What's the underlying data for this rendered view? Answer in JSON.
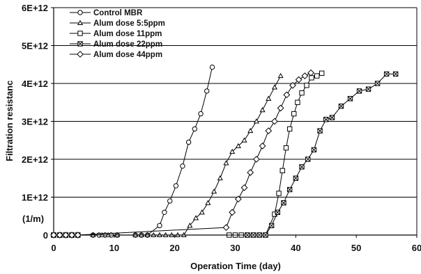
{
  "chart_data": {
    "type": "line",
    "title": "",
    "xlabel": "Operation Time (day)",
    "ylabel": "Filtration resistanc",
    "unit_label": "(1/m)",
    "xlim": [
      0,
      60
    ],
    "ylim": [
      0,
      6000000000000.0
    ],
    "x_ticks": [
      "0",
      "10",
      "20",
      "30",
      "40",
      "50",
      "60"
    ],
    "y_ticks": [
      "0",
      "1E+12",
      "2E+12",
      "3E+12",
      "4E+12",
      "5E+12",
      "6E+12"
    ],
    "grid": "horizontal",
    "legend_position": "top-left",
    "series": [
      {
        "name": "Control MBR",
        "marker": "circle",
        "x": [
          0,
          1,
          2,
          3,
          4,
          6.5,
          7.5,
          8.5,
          9.5,
          10.5,
          13.5,
          14.5,
          15.5,
          17.5,
          18.3,
          19.2,
          20.2,
          21.3,
          22.3,
          23.3,
          24.3,
          25.3,
          26.2
        ],
        "y": [
          0,
          0,
          0,
          0,
          0,
          0,
          0,
          0,
          0,
          0,
          0,
          0,
          0,
          250000000000.0,
          600000000000.0,
          900000000000.0,
          1300000000000.0,
          1820000000000.0,
          2450000000000.0,
          2800000000000.0,
          3200000000000.0,
          3800000000000.0,
          4430000000000.0
        ]
      },
      {
        "name": "Alum dose 5:5ppm",
        "marker": "triangle",
        "x": [
          0,
          1,
          2,
          3,
          4,
          6.5,
          8,
          9,
          10.5,
          13.5,
          14.5,
          15.5,
          16.5,
          17.5,
          18.5,
          19.5,
          20.5,
          21.5,
          22.5,
          23.5,
          24.5,
          25.5,
          26.5,
          27.5,
          28.5,
          29.5,
          30.5,
          31.5,
          32.5,
          33.5,
          34.5,
          35.5,
          36.5,
          37.5
        ],
        "y": [
          0,
          0,
          0,
          0,
          0,
          0,
          0,
          0,
          0,
          0,
          0,
          0,
          0,
          0,
          0,
          0,
          0,
          0,
          250000000000.0,
          450000000000.0,
          600000000000.0,
          850000000000.0,
          1150000000000.0,
          1500000000000.0,
          1900000000000.0,
          2200000000000.0,
          2350000000000.0,
          2500000000000.0,
          2750000000000.0,
          3000000000000.0,
          3300000000000.0,
          3600000000000.0,
          3900000000000.0,
          4200000000000.0
        ]
      },
      {
        "name": "Alum dose 11ppm",
        "marker": "square",
        "x": [
          0,
          1,
          2,
          3,
          4,
          29,
          30,
          31,
          32,
          33,
          34,
          35,
          36.5,
          37.2,
          37.8,
          38.4,
          39,
          39.7,
          40.3,
          41,
          41.8,
          42.6,
          43.5,
          44.3
        ],
        "y": [
          0,
          0,
          0,
          0,
          0,
          0,
          0,
          0,
          0,
          0,
          0,
          0,
          550000000000.0,
          1100000000000.0,
          1700000000000.0,
          2300000000000.0,
          2800000000000.0,
          3200000000000.0,
          3500000000000.0,
          3750000000000.0,
          3950000000000.0,
          4150000000000.0,
          4200000000000.0,
          4270000000000.0
        ]
      },
      {
        "name": "Alum dose 22ppm",
        "marker": "boxcross",
        "x": [
          0,
          1,
          2,
          3,
          4,
          32,
          33,
          34,
          35,
          36,
          37,
          38,
          39,
          40,
          41,
          42,
          43,
          44,
          45,
          46,
          47.5,
          49,
          50.5,
          52,
          53.5,
          55,
          56.5
        ],
        "y": [
          0,
          0,
          0,
          0,
          0,
          0,
          0,
          0,
          0,
          250000000000.0,
          600000000000.0,
          850000000000.0,
          1200000000000.0,
          1500000000000.0,
          1800000000000.0,
          2000000000000.0,
          2250000000000.0,
          2750000000000.0,
          3050000000000.0,
          3100000000000.0,
          3400000000000.0,
          3600000000000.0,
          3800000000000.0,
          3850000000000.0,
          4000000000000.0,
          4250000000000.0,
          4250000000000.0
        ]
      },
      {
        "name": "Alum dose 44ppm",
        "marker": "diamond",
        "x": [
          0,
          1,
          2,
          3,
          4,
          28.5,
          29.5,
          30.5,
          31.5,
          32.5,
          33.5,
          34.5,
          35.5,
          36.5,
          37.5,
          38.5,
          39.5,
          40.5,
          41.5,
          42.5
        ],
        "y": [
          0,
          0,
          0,
          0,
          0,
          200000000000.0,
          600000000000.0,
          950000000000.0,
          1250000000000.0,
          1650000000000.0,
          2000000000000.0,
          2350000000000.0,
          2750000000000.0,
          3000000000000.0,
          3350000000000.0,
          3700000000000.0,
          3950000000000.0,
          4100000000000.0,
          4200000000000.0,
          4280000000000.0
        ]
      }
    ]
  }
}
